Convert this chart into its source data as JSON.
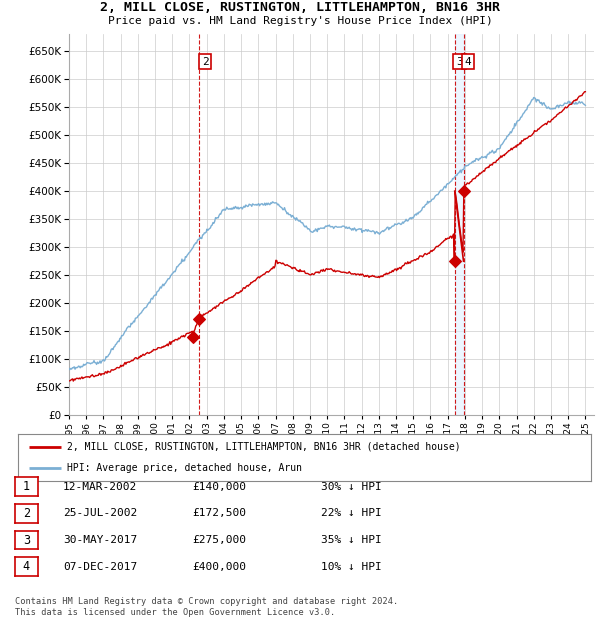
{
  "title": "2, MILL CLOSE, RUSTINGTON, LITTLEHAMPTON, BN16 3HR",
  "subtitle": "Price paid vs. HM Land Registry's House Price Index (HPI)",
  "legend_line1": "2, MILL CLOSE, RUSTINGTON, LITTLEHAMPTON, BN16 3HR (detached house)",
  "legend_line2": "HPI: Average price, detached house, Arun",
  "footer": "Contains HM Land Registry data © Crown copyright and database right 2024.\nThis data is licensed under the Open Government Licence v3.0.",
  "transactions": [
    {
      "num": 1,
      "date": "12-MAR-2002",
      "price": "£140,000",
      "hpi": "30% ↓ HPI",
      "year": 2002.19
    },
    {
      "num": 2,
      "date": "25-JUL-2002",
      "price": "£172,500",
      "hpi": "22% ↓ HPI",
      "year": 2002.56
    },
    {
      "num": 3,
      "date": "30-MAY-2017",
      "price": "£275,000",
      "hpi": "35% ↓ HPI",
      "year": 2017.41
    },
    {
      "num": 4,
      "date": "07-DEC-2017",
      "price": "£400,000",
      "hpi": "10% ↓ HPI",
      "year": 2017.92
    }
  ],
  "sale_prices": [
    140000,
    172500,
    275000,
    400000
  ],
  "sale_years": [
    2002.19,
    2002.56,
    2017.41,
    2017.92
  ],
  "hpi_color": "#7bafd4",
  "price_color": "#cc0000",
  "vline_color": "#cc0000",
  "box_color": "#cc0000",
  "grid_color": "#cccccc",
  "bg_color": "#ffffff",
  "ylim": [
    0,
    680000
  ],
  "yticks": [
    0,
    50000,
    100000,
    150000,
    200000,
    250000,
    300000,
    350000,
    400000,
    450000,
    500000,
    550000,
    600000,
    650000
  ],
  "xmin": 1995,
  "xmax": 2025.5
}
